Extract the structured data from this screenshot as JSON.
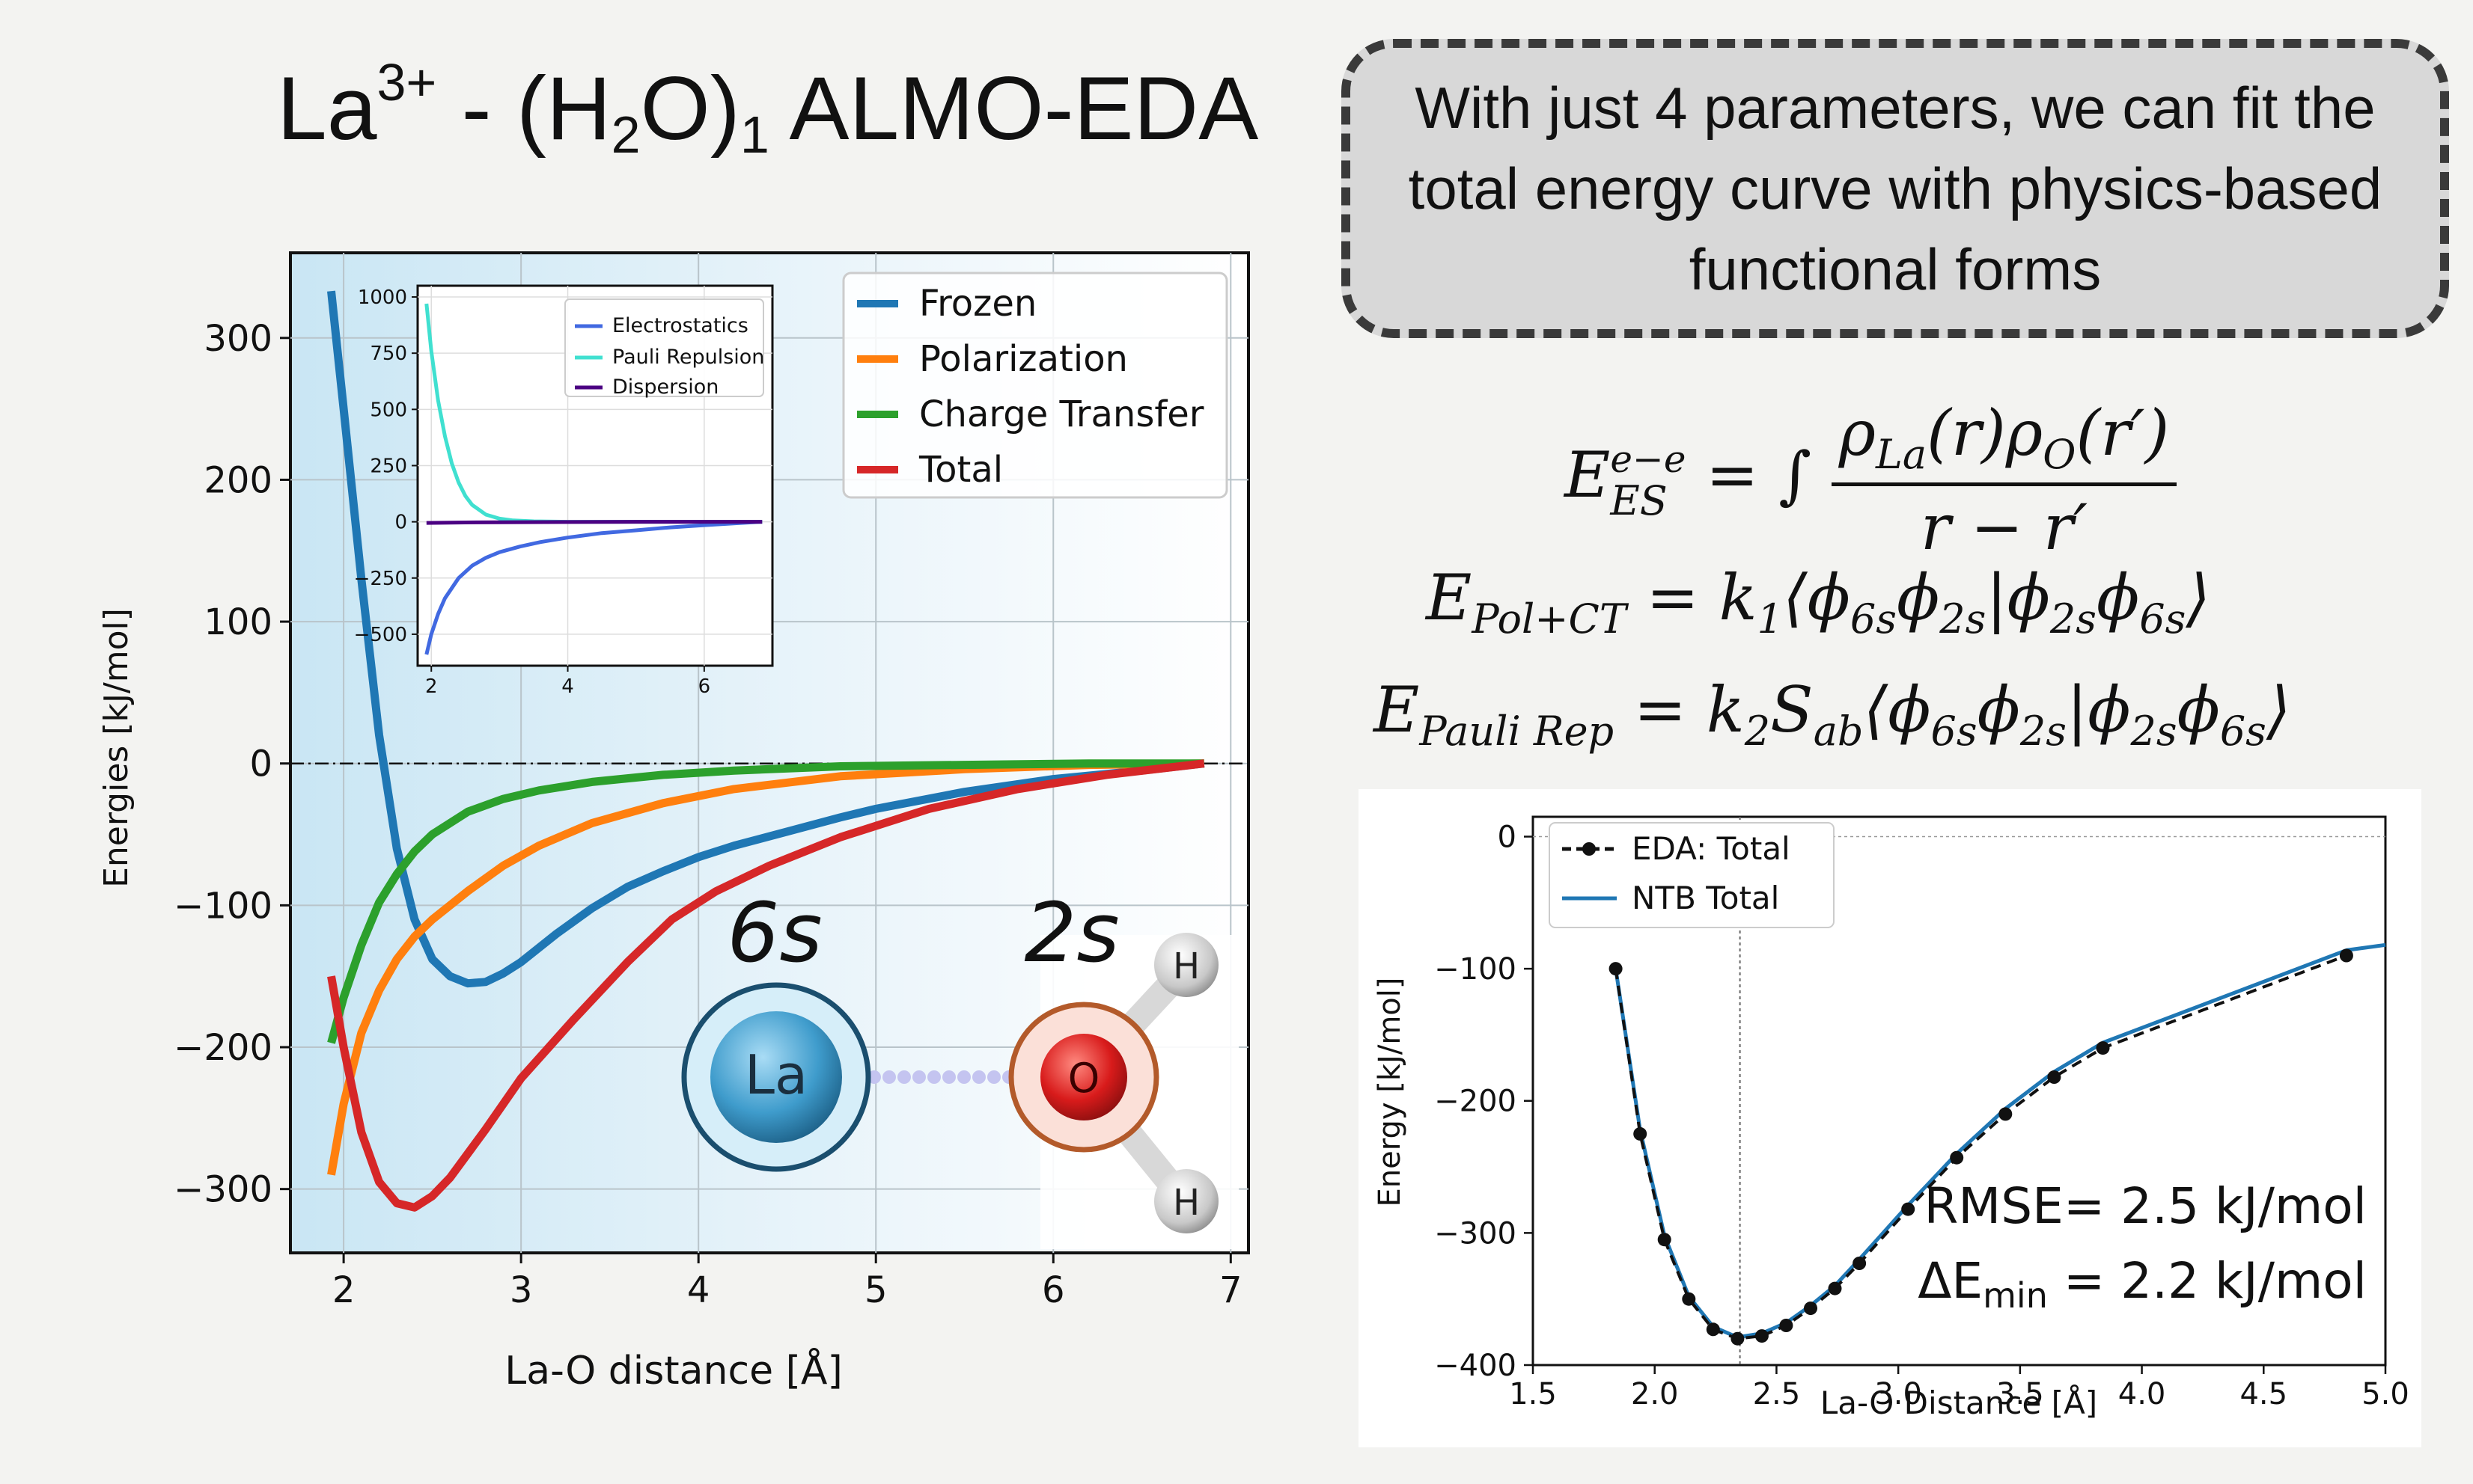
{
  "slide": {
    "title": {
      "base": "La",
      "sup": "3+",
      "mid": " - (H",
      "sub1": "2",
      "mid2": "O)",
      "sub2": "1",
      "tail": " ALMO-EDA"
    },
    "callout_text": "With just 4 parameters, we can fit the total energy curve with physics-based functional forms",
    "equations": {
      "es": {
        "lhs": "E",
        "sup": "e−e",
        "sub": "ES",
        "eq": " = ∫ ",
        "num": "ρ",
        "num_sub1": "La",
        "num_mid": "(r)ρ",
        "num_sub2": "O",
        "num_tail": "(r′)",
        "den": "r − r′"
      },
      "pol": {
        "lhs": "E",
        "sub": "Pol+CT",
        "rhs": " = k",
        "k_sub": "1",
        "bra": "⟨ϕ",
        "s1": "6s",
        "m1": "ϕ",
        "s2": "2s",
        "m2": "|ϕ",
        "s3": "2s",
        "m3": "ϕ",
        "s4": "6s",
        "ket": "⟩"
      },
      "pauli": {
        "lhs": "E",
        "sub": "Pauli Rep",
        "rhs": " = k",
        "k_sub": "2",
        "s": "S",
        "s_sub": "ab",
        "bra": "⟨ϕ",
        "s1": "6s",
        "m1": "ϕ",
        "s2": "2s",
        "m2": "|ϕ",
        "s3": "2s",
        "m3": "ϕ",
        "s4": "6s",
        "ket": "⟩"
      }
    },
    "orbital": {
      "label_6s": "6s",
      "label_2s": "2s",
      "atom_la": "La",
      "atom_o": "O",
      "atom_h": "H"
    },
    "colors": {
      "frozen": "#1f77b4",
      "polarization": "#ff7f0e",
      "charge_transfer": "#2ca02c",
      "total": "#d62728",
      "electrostatics": "#4169e1",
      "pauli": "#40e0d0",
      "dispersion": "#4b0082",
      "ntb": "#1f77b4"
    },
    "fit_annotation": {
      "rmse": "RMSE= 2.5 kJ/mol",
      "de_prefix": "ΔE",
      "de_sub": "min",
      "de_suffix": " = 2.2 kJ/mol"
    }
  },
  "chart_data": [
    {
      "type": "line",
      "xlabel": "La-O distance [Å]",
      "ylabel": "Energies [kJ/mol]",
      "xlim": [
        1.7,
        7.1
      ],
      "ylim": [
        -345,
        360
      ],
      "xticks": [
        2,
        3,
        4,
        5,
        6,
        7
      ],
      "yticks": [
        300,
        200,
        100,
        0,
        -100,
        -200,
        -300
      ],
      "xtick_labels": [
        "2",
        "3",
        "4",
        "5",
        "6",
        "7"
      ],
      "ytick_labels": [
        "300",
        "200",
        "100",
        "0",
        "−100",
        "−200",
        "−300"
      ],
      "grid": true,
      "legend": "top-right",
      "series": [
        {
          "name": "Frozen",
          "x": [
            1.93,
            2.0,
            2.1,
            2.2,
            2.3,
            2.4,
            2.5,
            2.6,
            2.7,
            2.8,
            2.9,
            3.0,
            3.2,
            3.4,
            3.6,
            3.8,
            4.0,
            4.2,
            4.5,
            4.8,
            5.0,
            5.5,
            6.0,
            6.5,
            6.85
          ],
          "y": [
            333,
            250,
            130,
            20,
            -60,
            -110,
            -138,
            -150,
            -155,
            -154,
            -148,
            -140,
            -120,
            -102,
            -87,
            -76,
            -66,
            -58,
            -48,
            -38,
            -32,
            -20,
            -11,
            -5,
            0
          ]
        },
        {
          "name": "Polarization",
          "x": [
            1.93,
            2.0,
            2.1,
            2.2,
            2.3,
            2.4,
            2.5,
            2.7,
            2.9,
            3.1,
            3.4,
            3.8,
            4.2,
            4.8,
            5.5,
            6.2,
            6.85
          ],
          "y": [
            -290,
            -240,
            -190,
            -160,
            -138,
            -122,
            -110,
            -90,
            -72,
            -58,
            -42,
            -28,
            -18,
            -9,
            -4,
            -1,
            0
          ]
        },
        {
          "name": "Charge Transfer",
          "x": [
            1.93,
            2.0,
            2.1,
            2.2,
            2.3,
            2.4,
            2.5,
            2.7,
            2.9,
            3.1,
            3.4,
            3.8,
            4.2,
            4.8,
            5.5,
            6.2,
            6.85
          ],
          "y": [
            -197,
            -165,
            -128,
            -98,
            -78,
            -62,
            -50,
            -34,
            -25,
            -19,
            -13,
            -8,
            -5,
            -2,
            -1,
            0,
            0
          ]
        },
        {
          "name": "Total",
          "x": [
            1.93,
            2.0,
            2.1,
            2.2,
            2.3,
            2.4,
            2.5,
            2.6,
            2.8,
            3.0,
            3.3,
            3.6,
            3.85,
            4.1,
            4.4,
            4.8,
            5.3,
            5.8,
            6.3,
            6.85
          ],
          "y": [
            -150,
            -200,
            -260,
            -295,
            -310,
            -313,
            -305,
            -292,
            -258,
            -222,
            -180,
            -140,
            -110,
            -90,
            -72,
            -52,
            -32,
            -18,
            -8,
            0
          ]
        }
      ]
    },
    {
      "type": "line",
      "xlim": [
        1.8,
        7.0
      ],
      "ylim": [
        -640,
        1050
      ],
      "xticks": [
        2,
        4,
        6
      ],
      "yticks": [
        1000,
        750,
        500,
        250,
        0,
        -250,
        -500
      ],
      "xtick_labels": [
        "2",
        "4",
        "6"
      ],
      "ytick_labels": [
        "1000",
        "750",
        "500",
        "250",
        "0",
        "−250",
        "−500"
      ],
      "grid": true,
      "legend": "top-right",
      "series": [
        {
          "name": "Electrostatics",
          "x": [
            1.93,
            2.0,
            2.1,
            2.2,
            2.4,
            2.6,
            2.8,
            3.0,
            3.3,
            3.6,
            4.0,
            4.5,
            5.0,
            5.5,
            6.0,
            6.5,
            6.85
          ],
          "y": [
            -590,
            -500,
            -410,
            -340,
            -250,
            -195,
            -160,
            -135,
            -110,
            -90,
            -70,
            -50,
            -38,
            -25,
            -15,
            -6,
            0
          ]
        },
        {
          "name": "Pauli Repulsion",
          "x": [
            1.93,
            2.0,
            2.1,
            2.2,
            2.3,
            2.4,
            2.5,
            2.6,
            2.8,
            3.0,
            3.2,
            3.5,
            4.0,
            5.0,
            6.85
          ],
          "y": [
            970,
            760,
            540,
            380,
            260,
            175,
            115,
            75,
            32,
            14,
            6,
            2,
            0,
            0,
            0
          ]
        },
        {
          "name": "Dispersion",
          "x": [
            1.93,
            2.5,
            3.0,
            4.0,
            5.0,
            6.0,
            6.85
          ],
          "y": [
            -5,
            -3,
            -2,
            -1,
            0,
            0,
            0
          ]
        }
      ]
    },
    {
      "type": "line",
      "xlabel": "La-O Distance [Å]",
      "ylabel": "Energy [kJ/mol]",
      "xlim": [
        1.5,
        5.0
      ],
      "ylim": [
        -400,
        15
      ],
      "xticks": [
        1.5,
        2.0,
        2.5,
        3.0,
        3.5,
        4.0,
        4.5,
        5.0
      ],
      "yticks": [
        0,
        -100,
        -200,
        -300,
        -400
      ],
      "xtick_labels": [
        "1.5",
        "2.0",
        "2.5",
        "3.0",
        "3.5",
        "4.0",
        "4.5",
        "5.0"
      ],
      "ytick_labels": [
        "0",
        "−100",
        "−200",
        "−300",
        "−400"
      ],
      "grid": false,
      "legend": "top-left",
      "vline": 2.35,
      "series": [
        {
          "name": "EDA: Total",
          "x": [
            1.84,
            1.94,
            2.04,
            2.14,
            2.24,
            2.34,
            2.44,
            2.54,
            2.64,
            2.74,
            2.84,
            3.04,
            3.24,
            3.44,
            3.64,
            3.84,
            4.84
          ],
          "y": [
            -100,
            -225,
            -305,
            -350,
            -373,
            -380,
            -378,
            -370,
            -357,
            -342,
            -323,
            -282,
            -243,
            -210,
            -182,
            -160,
            -90
          ]
        },
        {
          "name": "NTB Total",
          "x": [
            1.84,
            1.94,
            2.04,
            2.14,
            2.24,
            2.34,
            2.44,
            2.54,
            2.64,
            2.74,
            2.84,
            3.04,
            3.24,
            3.44,
            3.64,
            3.84,
            4.84,
            5.0
          ],
          "y": [
            -100,
            -222,
            -302,
            -348,
            -371,
            -379,
            -376,
            -368,
            -355,
            -340,
            -320,
            -279,
            -240,
            -206,
            -178,
            -156,
            -86,
            -82
          ]
        }
      ]
    }
  ]
}
